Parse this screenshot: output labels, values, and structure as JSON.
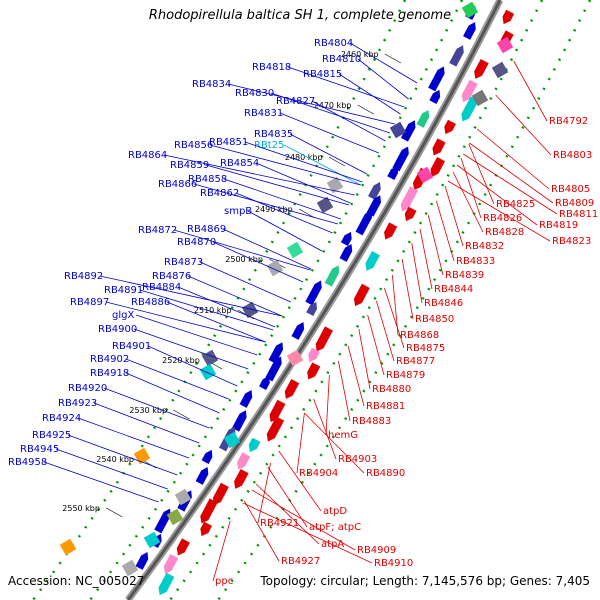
{
  "title": "Rhodopirellula baltica SH 1, complete genome",
  "accession": "Accession: NC_005027",
  "summary": "Topology: circular; Length: 7,145,576 bp; Genes: 7,405",
  "colors": {
    "forward": "#0000cc",
    "reverse": "#dd0000",
    "rna": "#00aadd",
    "backbone": "#555555",
    "tick": "#009900"
  },
  "kbp_markers": [
    "2460 kbp",
    "2470 kbp",
    "2480 kbp",
    "2490 kbp",
    "2500 kbp",
    "2510 kbp",
    "2520 kbp",
    "2530 kbp",
    "2540 kbp",
    "2550 kbp"
  ],
  "forward_labels": [
    "RB4804",
    "RB4810",
    "RB4818",
    "RB4815",
    "RB4834",
    "RB4830",
    "RB4827",
    "RB4831",
    "RB4835",
    "RBt25",
    "RB4856",
    "RB4851",
    "RB4864",
    "RB4859",
    "RB4854",
    "RB4858",
    "RB4866",
    "RB4862",
    "smpB",
    "RB4872",
    "RB4869",
    "RB4870",
    "RB4873",
    "RB4876",
    "RB4892",
    "RB4891",
    "RB4884",
    "RB4897",
    "RB4886",
    "glgX",
    "RB4900",
    "RB4901",
    "RB4902",
    "RB4918",
    "RB4920",
    "RB4923",
    "RB4924",
    "RB4925",
    "RB4945",
    "RB4958"
  ],
  "reverse_labels": [
    "RB4792",
    "RB4803",
    "RB4805",
    "RB4809",
    "RB4811",
    "RB4825",
    "RB4826",
    "RB4819",
    "RB4823",
    "RB4828",
    "RB4832",
    "RB4833",
    "RB4839",
    "RB4844",
    "RB4846",
    "RB4850",
    "RB4868",
    "RB4875",
    "RB4877",
    "RB4879",
    "RB4880",
    "RB4881",
    "RB4883",
    "hemG",
    "RB4903",
    "RB4904",
    "RB4890",
    "atpD",
    "RB4921",
    "atpF; atpC",
    "atpA",
    "RB4909",
    "RB4910",
    "RB4927",
    "ppc"
  ]
}
